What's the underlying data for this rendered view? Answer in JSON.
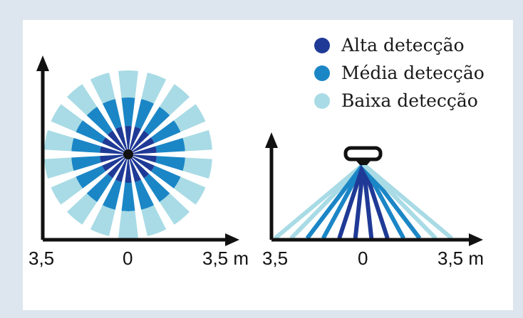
{
  "colors": {
    "high": "#1f3a96",
    "medium": "#1b86c6",
    "low": "#a8dbe5",
    "axis": "#111111",
    "frame_bg": "#dde5ee"
  },
  "legend": [
    {
      "label": "Alta detecção",
      "level": "high"
    },
    {
      "label": "Média detecção",
      "level": "medium"
    },
    {
      "label": "Baixa detecção",
      "level": "low"
    }
  ],
  "top_view": {
    "ticks": [
      "3,5",
      "0",
      "3,5 m"
    ],
    "sectors": 18,
    "ring_levels": [
      "high",
      "medium",
      "low"
    ]
  },
  "side_view": {
    "ticks": [
      "3,5",
      "0",
      "3,5 m"
    ],
    "beam_levels": [
      "low",
      "low",
      "medium",
      "medium",
      "high",
      "high",
      "high",
      "high",
      "medium",
      "medium",
      "low",
      "low"
    ]
  }
}
